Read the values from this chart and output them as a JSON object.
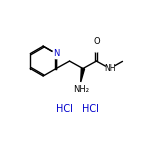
{
  "bg_color": "#ffffff",
  "line_color": "#000000",
  "blue_color": "#0000cc",
  "label_O": "O",
  "label_N_ring": "N",
  "label_NH2": "NH₂",
  "label_NH": "NH",
  "label_HCl1": "HCl",
  "label_HCl2": "HCl",
  "figsize": [
    1.52,
    1.52
  ],
  "dpi": 100
}
